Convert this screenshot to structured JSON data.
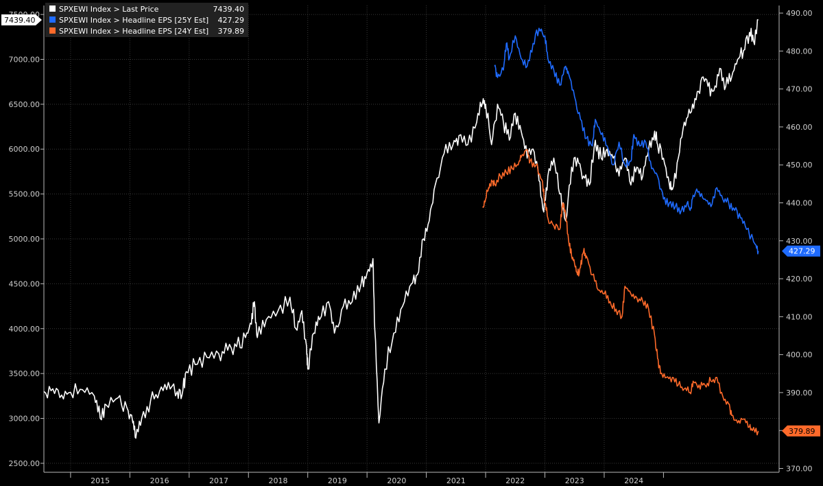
{
  "chart_data": {
    "type": "line",
    "title": "",
    "xlabel": "",
    "x_tick_labels": [
      "2015",
      "2016",
      "2017",
      "2018",
      "2019",
      "2020",
      "2021",
      "2022",
      "2023",
      "2024"
    ],
    "left_axis": {
      "tick_labels": [
        "2500.00",
        "3000.00",
        "3500.00",
        "4000.00",
        "4500.00",
        "5000.00",
        "5500.00",
        "6000.00",
        "6500.00",
        "7000.00",
        "7500.00"
      ],
      "ylim": [
        2400,
        7600
      ]
    },
    "right_axis": {
      "tick_labels": [
        "370.00",
        "380.00",
        "390.00",
        "400.00",
        "410.00",
        "420.00",
        "430.00",
        "440.00",
        "450.00",
        "460.00",
        "470.00",
        "480.00",
        "490.00"
      ],
      "ylim": [
        369,
        492
      ]
    },
    "grid": true,
    "legend_position": "top-left",
    "series": [
      {
        "name": "SPXEWI Index > Last Price",
        "last_value": "7439.40",
        "color": "#ffffff",
        "axis": "left",
        "points": [
          [
            2014.55,
            3300
          ],
          [
            2014.7,
            3330
          ],
          [
            2014.85,
            3260
          ],
          [
            2015.0,
            3290
          ],
          [
            2015.2,
            3320
          ],
          [
            2015.4,
            3250
          ],
          [
            2015.5,
            3000
          ],
          [
            2015.6,
            3150
          ],
          [
            2015.8,
            3230
          ],
          [
            2015.95,
            3120
          ],
          [
            2016.05,
            2950
          ],
          [
            2016.1,
            2780
          ],
          [
            2016.2,
            3000
          ],
          [
            2016.35,
            3200
          ],
          [
            2016.5,
            3300
          ],
          [
            2016.65,
            3400
          ],
          [
            2016.8,
            3300
          ],
          [
            2016.88,
            3260
          ],
          [
            2016.95,
            3520
          ],
          [
            2017.1,
            3600
          ],
          [
            2017.3,
            3680
          ],
          [
            2017.5,
            3720
          ],
          [
            2017.65,
            3760
          ],
          [
            2017.8,
            3800
          ],
          [
            2017.95,
            3900
          ],
          [
            2018.05,
            4050
          ],
          [
            2018.1,
            4300
          ],
          [
            2018.15,
            3900
          ],
          [
            2018.3,
            4100
          ],
          [
            2018.5,
            4200
          ],
          [
            2018.7,
            4350
          ],
          [
            2018.8,
            4000
          ],
          [
            2018.9,
            4200
          ],
          [
            2018.98,
            3800
          ],
          [
            2019.0,
            3550
          ],
          [
            2019.1,
            3950
          ],
          [
            2019.2,
            4100
          ],
          [
            2019.35,
            4300
          ],
          [
            2019.45,
            3950
          ],
          [
            2019.6,
            4250
          ],
          [
            2019.75,
            4300
          ],
          [
            2019.9,
            4500
          ],
          [
            2020.0,
            4620
          ],
          [
            2020.1,
            4780
          ],
          [
            2020.13,
            4000
          ],
          [
            2020.2,
            2950
          ],
          [
            2020.3,
            3550
          ],
          [
            2020.45,
            3950
          ],
          [
            2020.6,
            4250
          ],
          [
            2020.75,
            4500
          ],
          [
            2020.85,
            4600
          ],
          [
            2020.95,
            5000
          ],
          [
            2021.05,
            5200
          ],
          [
            2021.15,
            5600
          ],
          [
            2021.3,
            5950
          ],
          [
            2021.45,
            6050
          ],
          [
            2021.55,
            6150
          ],
          [
            2021.7,
            6050
          ],
          [
            2021.85,
            6300
          ],
          [
            2021.95,
            6520
          ],
          [
            2022.0,
            6500
          ],
          [
            2022.1,
            6050
          ],
          [
            2022.2,
            6500
          ],
          [
            2022.3,
            6300
          ],
          [
            2022.4,
            6100
          ],
          [
            2022.5,
            6400
          ],
          [
            2022.6,
            6200
          ],
          [
            2022.7,
            5900
          ],
          [
            2022.8,
            6000
          ],
          [
            2022.9,
            5650
          ],
          [
            2022.98,
            5300
          ],
          [
            2023.05,
            5700
          ],
          [
            2023.15,
            5900
          ],
          [
            2023.25,
            5500
          ],
          [
            2023.35,
            5200
          ],
          [
            2023.45,
            5800
          ],
          [
            2023.55,
            5900
          ],
          [
            2023.65,
            5700
          ],
          [
            2023.75,
            5600
          ],
          [
            2023.85,
            6100
          ],
          [
            2023.95,
            5900
          ],
          [
            2024.05,
            6000
          ],
          [
            2024.15,
            5900
          ],
          [
            2024.25,
            5700
          ],
          [
            2024.35,
            5900
          ],
          [
            2024.45,
            5600
          ],
          [
            2024.55,
            5800
          ],
          [
            2024.65,
            5700
          ],
          [
            2024.75,
            6000
          ],
          [
            2024.85,
            6200
          ],
          [
            2024.9,
            6050
          ],
          [
            2025.0,
            5900
          ],
          [
            2025.1,
            5600
          ],
          [
            2025.15,
            5550
          ],
          [
            2025.25,
            5900
          ],
          [
            2025.35,
            6300
          ],
          [
            2025.45,
            6400
          ],
          [
            2025.55,
            6550
          ],
          [
            2025.65,
            6800
          ],
          [
            2025.75,
            6700
          ],
          [
            2025.85,
            6650
          ],
          [
            2025.95,
            6900
          ],
          [
            2026.05,
            6700
          ],
          [
            2026.15,
            6800
          ],
          [
            2026.25,
            7000
          ],
          [
            2026.35,
            7100
          ],
          [
            2026.45,
            7300
          ],
          [
            2026.52,
            7200
          ],
          [
            2026.6,
            7439.4
          ]
        ]
      },
      {
        "name": "SPXEWI Index > Headline EPS [25Y Est]",
        "last_value": "427.29",
        "color": "#1f6bff",
        "axis": "right",
        "points": [
          [
            2022.15,
            476
          ],
          [
            2022.2,
            473
          ],
          [
            2022.3,
            475
          ],
          [
            2022.35,
            482
          ],
          [
            2022.4,
            478
          ],
          [
            2022.5,
            484
          ],
          [
            2022.6,
            478
          ],
          [
            2022.7,
            476
          ],
          [
            2022.8,
            482
          ],
          [
            2022.9,
            486
          ],
          [
            2023.0,
            484
          ],
          [
            2023.05,
            478
          ],
          [
            2023.15,
            475
          ],
          [
            2023.25,
            471
          ],
          [
            2023.35,
            476
          ],
          [
            2023.4,
            474
          ],
          [
            2023.5,
            468
          ],
          [
            2023.6,
            462
          ],
          [
            2023.7,
            457
          ],
          [
            2023.8,
            455
          ],
          [
            2023.85,
            462
          ],
          [
            2023.95,
            458
          ],
          [
            2024.05,
            455
          ],
          [
            2024.15,
            450
          ],
          [
            2024.25,
            456
          ],
          [
            2024.35,
            450
          ],
          [
            2024.45,
            451
          ],
          [
            2024.5,
            458
          ],
          [
            2024.6,
            455
          ],
          [
            2024.7,
            456
          ],
          [
            2024.8,
            449
          ],
          [
            2024.9,
            447
          ],
          [
            2025.0,
            441
          ],
          [
            2025.1,
            440
          ],
          [
            2025.2,
            439
          ],
          [
            2025.3,
            438
          ],
          [
            2025.4,
            440
          ],
          [
            2025.45,
            438
          ],
          [
            2025.5,
            442
          ],
          [
            2025.6,
            443
          ],
          [
            2025.7,
            441
          ],
          [
            2025.8,
            439
          ],
          [
            2025.9,
            444
          ],
          [
            2026.0,
            441
          ],
          [
            2026.1,
            440
          ],
          [
            2026.2,
            438
          ],
          [
            2026.3,
            436
          ],
          [
            2026.4,
            433
          ],
          [
            2026.55,
            429
          ],
          [
            2026.6,
            427.29
          ]
        ]
      },
      {
        "name": "SPXEWI Index > Headline EPS [24Y Est]",
        "last_value": "379.89",
        "color": "#ff6a2a",
        "axis": "right",
        "points": [
          [
            2021.95,
            439
          ],
          [
            2022.0,
            441
          ],
          [
            2022.05,
            444
          ],
          [
            2022.1,
            446
          ],
          [
            2022.15,
            445
          ],
          [
            2022.25,
            447
          ],
          [
            2022.35,
            448
          ],
          [
            2022.45,
            449
          ],
          [
            2022.55,
            450
          ],
          [
            2022.6,
            452
          ],
          [
            2022.7,
            454
          ],
          [
            2022.75,
            451
          ],
          [
            2022.85,
            450
          ],
          [
            2022.95,
            446
          ],
          [
            2023.0,
            440
          ],
          [
            2023.05,
            436
          ],
          [
            2023.15,
            434
          ],
          [
            2023.25,
            433
          ],
          [
            2023.3,
            440
          ],
          [
            2023.35,
            437
          ],
          [
            2023.4,
            430
          ],
          [
            2023.45,
            426
          ],
          [
            2023.5,
            424
          ],
          [
            2023.55,
            421
          ],
          [
            2023.6,
            423
          ],
          [
            2023.65,
            427
          ],
          [
            2023.7,
            426
          ],
          [
            2023.8,
            421
          ],
          [
            2023.9,
            417
          ],
          [
            2024.0,
            416
          ],
          [
            2024.1,
            414
          ],
          [
            2024.2,
            412
          ],
          [
            2024.3,
            410
          ],
          [
            2024.35,
            418
          ],
          [
            2024.45,
            416
          ],
          [
            2024.55,
            415
          ],
          [
            2024.65,
            414
          ],
          [
            2024.75,
            412
          ],
          [
            2024.85,
            405
          ],
          [
            2024.9,
            399
          ],
          [
            2024.95,
            395
          ],
          [
            2025.05,
            394
          ],
          [
            2025.15,
            394
          ],
          [
            2025.25,
            392
          ],
          [
            2025.35,
            391
          ],
          [
            2025.45,
            390
          ],
          [
            2025.5,
            393
          ],
          [
            2025.6,
            392
          ],
          [
            2025.7,
            392
          ],
          [
            2025.8,
            393
          ],
          [
            2025.9,
            394
          ],
          [
            2026.0,
            389
          ],
          [
            2026.1,
            387
          ],
          [
            2026.15,
            384
          ],
          [
            2026.25,
            382
          ],
          [
            2026.35,
            383
          ],
          [
            2026.45,
            381
          ],
          [
            2026.5,
            380
          ],
          [
            2026.6,
            379.89
          ]
        ]
      }
    ]
  }
}
